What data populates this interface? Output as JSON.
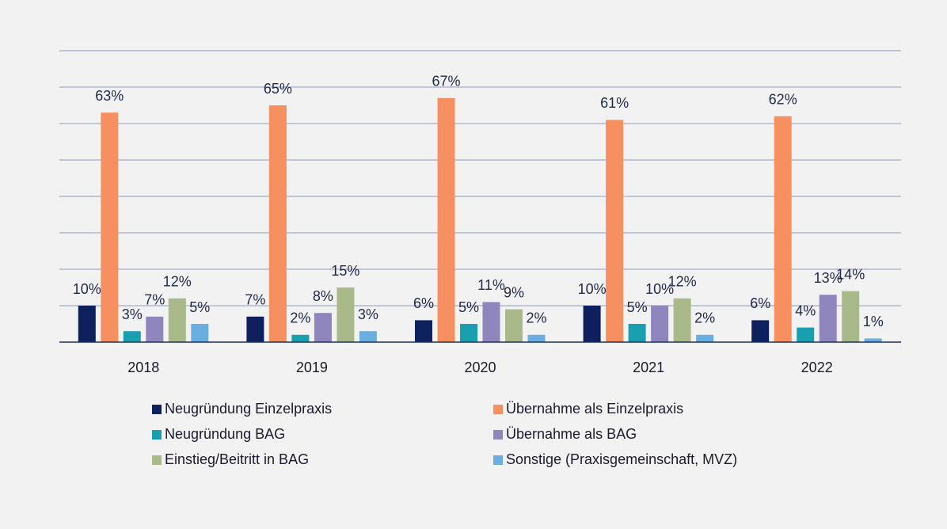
{
  "chart_data": {
    "type": "bar",
    "categories": [
      "2018",
      "2019",
      "2020",
      "2021",
      "2022"
    ],
    "ylim": [
      0,
      80
    ],
    "yticks": [
      0,
      10,
      20,
      30,
      40,
      50,
      60,
      70,
      80
    ],
    "grid": true,
    "legend": "bottom",
    "series": [
      {
        "name": "Neugründung Einzelpraxis",
        "color": "#0d1f5c",
        "values": [
          10,
          7,
          6,
          10,
          6
        ],
        "value_labels": [
          "10%",
          "7%",
          "6%",
          "10%",
          "6%"
        ]
      },
      {
        "name": "Übernahme als Einzelpraxis",
        "color": "#f79060",
        "values": [
          63,
          65,
          67,
          61,
          62
        ],
        "value_labels": [
          "63%",
          "65%",
          "67%",
          "61%",
          "62%"
        ]
      },
      {
        "name": "Neugründung BAG",
        "color": "#1a9fb0",
        "values": [
          3,
          2,
          5,
          5,
          4
        ],
        "value_labels": [
          "3%",
          "2%",
          "5%",
          "5%",
          "4%"
        ]
      },
      {
        "name": "Übernahme als BAG",
        "color": "#8e86bd",
        "values": [
          7,
          8,
          11,
          10,
          13
        ],
        "value_labels": [
          "7%",
          "8%",
          "11%",
          "10%",
          "13%"
        ]
      },
      {
        "name": "Einstieg/Beitritt in BAG",
        "color": "#aab98a",
        "values": [
          12,
          15,
          9,
          12,
          14
        ],
        "value_labels": [
          "12%",
          "15%",
          "9%",
          "12%",
          "14%"
        ]
      },
      {
        "name": "Sonstige (Praxisgemeinschaft, MVZ)",
        "color": "#6aaee0",
        "values": [
          5,
          3,
          2,
          2,
          1
        ],
        "value_labels": [
          "5%",
          "3%",
          "2%",
          "2%",
          "1%"
        ]
      }
    ]
  }
}
